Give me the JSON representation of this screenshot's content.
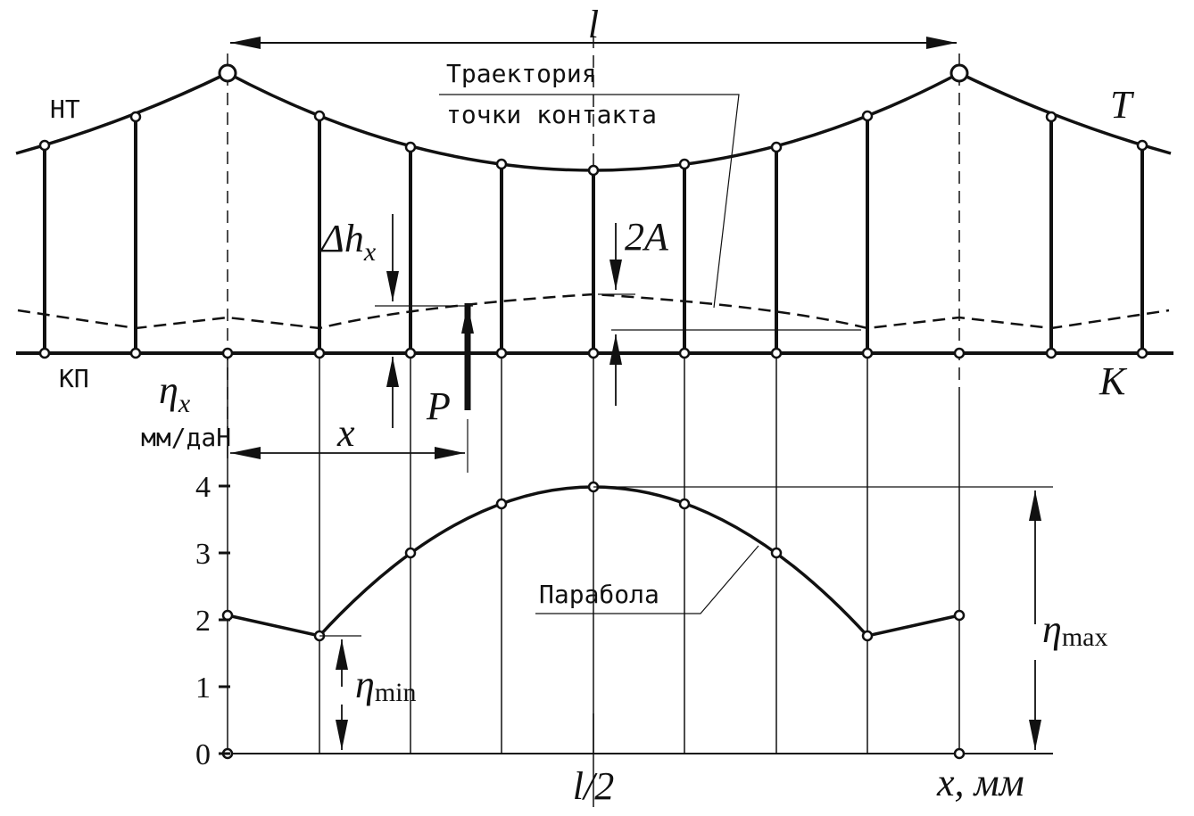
{
  "labels": {
    "span": "l",
    "carrier": "НТ",
    "carrier_symbol": "T",
    "contact": "КП",
    "contact_symbol": "K",
    "trajectory_line1": "Траектория",
    "trajectory_line2": "точки контакта",
    "delta_h": "Δh",
    "delta_h_sub": "x",
    "two_a": "2A",
    "force": "P",
    "eta": "η",
    "eta_sub": "x",
    "eta_unit": "мм/даН",
    "x_dim": "x",
    "parabola": "Парабола",
    "half_span": "l/2",
    "x_axis": "x, мм",
    "eta_max": "η",
    "eta_max_sub": "max",
    "eta_min": "η",
    "eta_min_sub": "min"
  },
  "y_axis": {
    "ticks": [
      0,
      1,
      2,
      3,
      4
    ]
  }
}
